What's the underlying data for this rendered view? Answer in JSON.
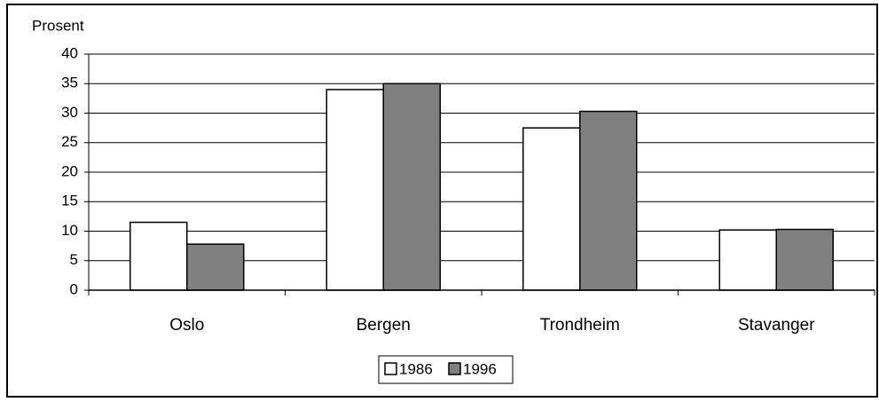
{
  "chart_data": {
    "type": "bar",
    "y_label": "Prosent",
    "categories": [
      "Oslo",
      "Bergen",
      "Trondheim",
      "Stavanger"
    ],
    "series": [
      {
        "name": "1986",
        "color": "#ffffff",
        "values": [
          11.5,
          34,
          27.5,
          10.2
        ]
      },
      {
        "name": "1996",
        "color": "#808080",
        "values": [
          7.8,
          35,
          30.3,
          10.3
        ]
      }
    ],
    "ylim": [
      0,
      40
    ],
    "yticks": [
      0,
      5,
      10,
      15,
      20,
      25,
      30,
      35,
      40
    ],
    "grid": true,
    "legend": "bottom"
  }
}
